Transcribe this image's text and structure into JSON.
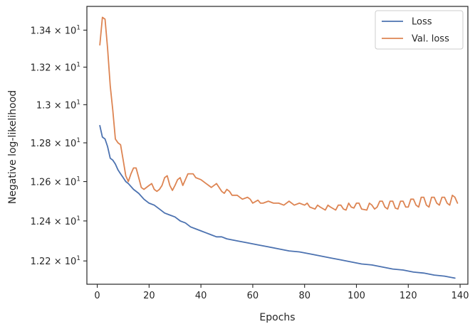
{
  "chart_data": {
    "type": "line",
    "title": "",
    "xlabel": "Epochs",
    "ylabel": "Negative log-likelihood",
    "xlim": [
      -4,
      143
    ],
    "ylim": [
      12.085,
      13.53
    ],
    "yscale": "log",
    "grid": false,
    "legend_position": "top-right",
    "x_ticks": [
      0,
      20,
      40,
      60,
      80,
      100,
      120,
      140
    ],
    "y_ticks": [
      12.2,
      12.4,
      12.6,
      12.8,
      13.0,
      13.2,
      13.4
    ],
    "y_tick_labels": [
      {
        "mantissa": "1.22",
        "exp": "1"
      },
      {
        "mantissa": "1.24",
        "exp": "1"
      },
      {
        "mantissa": "1.26",
        "exp": "1"
      },
      {
        "mantissa": "1.28",
        "exp": "1"
      },
      {
        "mantissa": "1.3",
        "exp": "1"
      },
      {
        "mantissa": "1.32",
        "exp": "1"
      },
      {
        "mantissa": "1.34",
        "exp": "1"
      }
    ],
    "series": [
      {
        "name": "Loss",
        "color": "#4c72b0",
        "points": [
          [
            1,
            12.89
          ],
          [
            2,
            12.83
          ],
          [
            3,
            12.82
          ],
          [
            4,
            12.78
          ],
          [
            5,
            12.72
          ],
          [
            6,
            12.71
          ],
          [
            7,
            12.69
          ],
          [
            8,
            12.66
          ],
          [
            9,
            12.64
          ],
          [
            10,
            12.62
          ],
          [
            11,
            12.6
          ],
          [
            12,
            12.59
          ],
          [
            14,
            12.56
          ],
          [
            16,
            12.54
          ],
          [
            18,
            12.51
          ],
          [
            20,
            12.49
          ],
          [
            22,
            12.48
          ],
          [
            24,
            12.46
          ],
          [
            26,
            12.44
          ],
          [
            28,
            12.43
          ],
          [
            30,
            12.42
          ],
          [
            32,
            12.4
          ],
          [
            34,
            12.39
          ],
          [
            36,
            12.37
          ],
          [
            38,
            12.36
          ],
          [
            40,
            12.35
          ],
          [
            42,
            12.34
          ],
          [
            44,
            12.33
          ],
          [
            46,
            12.32
          ],
          [
            48,
            12.32
          ],
          [
            50,
            12.31
          ],
          [
            54,
            12.3
          ],
          [
            58,
            12.29
          ],
          [
            62,
            12.28
          ],
          [
            66,
            12.27
          ],
          [
            70,
            12.26
          ],
          [
            74,
            12.25
          ],
          [
            78,
            12.245
          ],
          [
            82,
            12.235
          ],
          [
            86,
            12.225
          ],
          [
            90,
            12.215
          ],
          [
            94,
            12.205
          ],
          [
            98,
            12.195
          ],
          [
            102,
            12.185
          ],
          [
            106,
            12.18
          ],
          [
            110,
            12.17
          ],
          [
            114,
            12.16
          ],
          [
            118,
            12.155
          ],
          [
            122,
            12.145
          ],
          [
            126,
            12.14
          ],
          [
            130,
            12.13
          ],
          [
            134,
            12.125
          ],
          [
            138,
            12.115
          ]
        ]
      },
      {
        "name": "Val. loss",
        "color": "#dd8452",
        "points": [
          [
            1,
            13.32
          ],
          [
            2,
            13.47
          ],
          [
            3,
            13.46
          ],
          [
            4,
            13.3
          ],
          [
            5,
            13.1
          ],
          [
            6,
            12.97
          ],
          [
            7,
            12.82
          ],
          [
            8,
            12.8
          ],
          [
            9,
            12.79
          ],
          [
            10,
            12.71
          ],
          [
            11,
            12.63
          ],
          [
            12,
            12.6
          ],
          [
            13,
            12.64
          ],
          [
            14,
            12.67
          ],
          [
            15,
            12.67
          ],
          [
            16,
            12.62
          ],
          [
            17,
            12.57
          ],
          [
            18,
            12.56
          ],
          [
            20,
            12.58
          ],
          [
            21,
            12.59
          ],
          [
            22,
            12.56
          ],
          [
            23,
            12.55
          ],
          [
            24,
            12.56
          ],
          [
            25,
            12.58
          ],
          [
            26,
            12.62
          ],
          [
            27,
            12.63
          ],
          [
            28,
            12.58
          ],
          [
            29,
            12.555
          ],
          [
            30,
            12.58
          ],
          [
            31,
            12.61
          ],
          [
            32,
            12.62
          ],
          [
            33,
            12.58
          ],
          [
            34,
            12.61
          ],
          [
            35,
            12.64
          ],
          [
            37,
            12.64
          ],
          [
            38,
            12.62
          ],
          [
            40,
            12.61
          ],
          [
            42,
            12.59
          ],
          [
            43,
            12.58
          ],
          [
            44,
            12.57
          ],
          [
            46,
            12.59
          ],
          [
            48,
            12.55
          ],
          [
            49,
            12.54
          ],
          [
            50,
            12.56
          ],
          [
            51,
            12.55
          ],
          [
            52,
            12.53
          ],
          [
            54,
            12.53
          ],
          [
            55,
            12.52
          ],
          [
            56,
            12.51
          ],
          [
            58,
            12.52
          ],
          [
            59,
            12.51
          ],
          [
            60,
            12.49
          ],
          [
            62,
            12.505
          ],
          [
            63,
            12.49
          ],
          [
            64,
            12.49
          ],
          [
            66,
            12.5
          ],
          [
            68,
            12.49
          ],
          [
            70,
            12.49
          ],
          [
            72,
            12.48
          ],
          [
            74,
            12.5
          ],
          [
            76,
            12.48
          ],
          [
            78,
            12.49
          ],
          [
            80,
            12.48
          ],
          [
            81,
            12.49
          ],
          [
            82,
            12.47
          ],
          [
            84,
            12.46
          ],
          [
            85,
            12.48
          ],
          [
            86,
            12.47
          ],
          [
            88,
            12.455
          ],
          [
            89,
            12.48
          ],
          [
            90,
            12.47
          ],
          [
            92,
            12.455
          ],
          [
            93,
            12.48
          ],
          [
            94,
            12.48
          ],
          [
            95,
            12.46
          ],
          [
            96,
            12.455
          ],
          [
            97,
            12.49
          ],
          [
            98,
            12.47
          ],
          [
            99,
            12.465
          ],
          [
            100,
            12.49
          ],
          [
            101,
            12.49
          ],
          [
            102,
            12.46
          ],
          [
            104,
            12.455
          ],
          [
            105,
            12.49
          ],
          [
            106,
            12.48
          ],
          [
            107,
            12.46
          ],
          [
            108,
            12.47
          ],
          [
            109,
            12.5
          ],
          [
            110,
            12.5
          ],
          [
            111,
            12.47
          ],
          [
            112,
            12.46
          ],
          [
            113,
            12.5
          ],
          [
            114,
            12.5
          ],
          [
            115,
            12.465
          ],
          [
            116,
            12.46
          ],
          [
            117,
            12.5
          ],
          [
            118,
            12.5
          ],
          [
            119,
            12.47
          ],
          [
            120,
            12.47
          ],
          [
            121,
            12.51
          ],
          [
            122,
            12.51
          ],
          [
            123,
            12.48
          ],
          [
            124,
            12.47
          ],
          [
            125,
            12.52
          ],
          [
            126,
            12.52
          ],
          [
            127,
            12.48
          ],
          [
            128,
            12.47
          ],
          [
            129,
            12.52
          ],
          [
            130,
            12.52
          ],
          [
            131,
            12.49
          ],
          [
            132,
            12.48
          ],
          [
            133,
            12.52
          ],
          [
            134,
            12.52
          ],
          [
            135,
            12.49
          ],
          [
            136,
            12.48
          ],
          [
            137,
            12.53
          ],
          [
            138,
            12.52
          ],
          [
            139,
            12.49
          ]
        ]
      }
    ]
  }
}
